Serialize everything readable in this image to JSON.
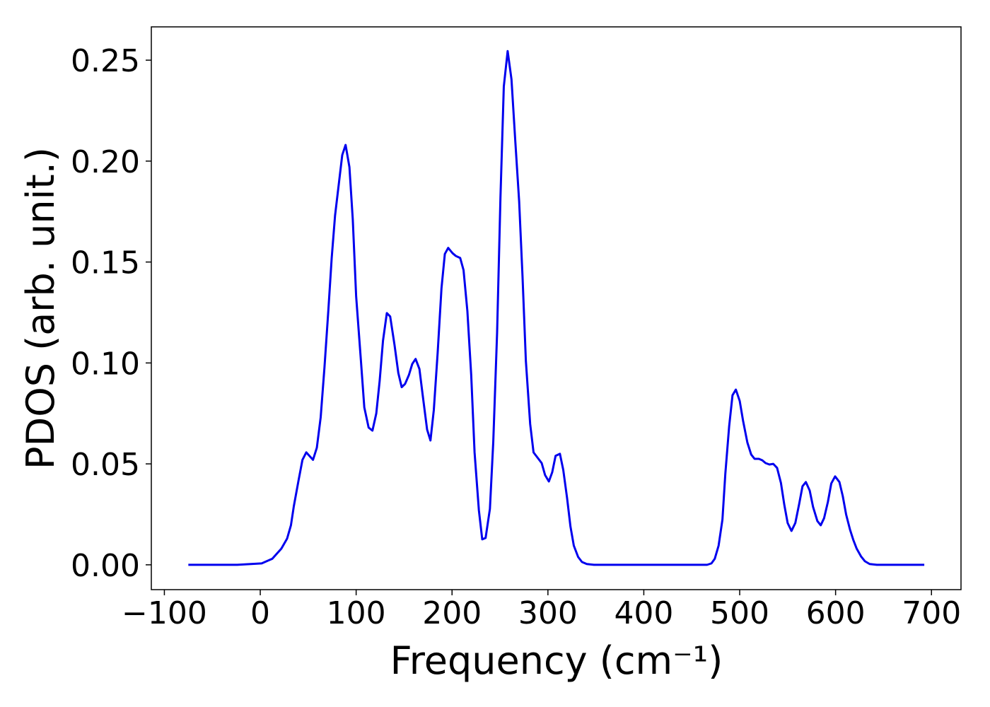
{
  "chart_data": {
    "type": "line",
    "xlabel": "Frequency (cm⁻¹)",
    "ylabel": "PDOS (arb. unit.)",
    "xlim": [
      -113.6,
      730.8
    ],
    "ylim": [
      -0.0123,
      0.2665
    ],
    "xticks": [
      {
        "value": -100,
        "label": "−100"
      },
      0,
      100,
      200,
      300,
      400,
      500,
      600,
      700
    ],
    "yticks": [
      {
        "value": 0,
        "label": "0.00"
      },
      0.05,
      {
        "value": 0.1,
        "label": "0.10"
      },
      0.15,
      {
        "value": 0.2,
        "label": "0.20"
      },
      0.25
    ],
    "grid": false,
    "series": [
      {
        "color": "#0000ee",
        "x": [
          -75,
          -24,
          1.5,
          12.5,
          22,
          28,
          32,
          35,
          40,
          44,
          48,
          55,
          59,
          63,
          67,
          71,
          74.5,
          78,
          82,
          85.5,
          89,
          93,
          96.5,
          100,
          105,
          108.5,
          113,
          117,
          121,
          124.5,
          128,
          132,
          135.5,
          140,
          144,
          147.5,
          151,
          155,
          158.5,
          162,
          166,
          169.5,
          174,
          177.5,
          181,
          185,
          189,
          192.5,
          196,
          200.5,
          204,
          208.5,
          212,
          216,
          220,
          223.5,
          228,
          231.5,
          235,
          239.5,
          243,
          247,
          250.5,
          254,
          258,
          262,
          266,
          270,
          273.5,
          277,
          281.5,
          285,
          289,
          293.5,
          297,
          301,
          304.5,
          308,
          312.5,
          316,
          320,
          323.5,
          327,
          331.5,
          335.5,
          340.5,
          348,
          466,
          470.5,
          474,
          478,
          482,
          485,
          489,
          492.5,
          496,
          500,
          503.5,
          508,
          512,
          515.5,
          520,
          523.5,
          527,
          531,
          535,
          539,
          543,
          546.5,
          550,
          554,
          558,
          562,
          565.5,
          569,
          573,
          576.5,
          581,
          584.5,
          588,
          592,
          595.5,
          599.5,
          604,
          607.5,
          611,
          615,
          618.5,
          622,
          626.5,
          630.5,
          635.5,
          643,
          692.5
        ],
        "values": [
          0,
          0,
          0.0007,
          0.003,
          0.008,
          0.013,
          0.0196,
          0.029,
          0.042,
          0.052,
          0.0557,
          0.052,
          0.058,
          0.073,
          0.098,
          0.126,
          0.152,
          0.173,
          0.189,
          0.203,
          0.208,
          0.197,
          0.171,
          0.133,
          0.101,
          0.078,
          0.068,
          0.0665,
          0.075,
          0.091,
          0.111,
          0.1247,
          0.123,
          0.109,
          0.095,
          0.088,
          0.0896,
          0.094,
          0.0995,
          0.102,
          0.097,
          0.0837,
          0.067,
          0.0616,
          0.0767,
          0.105,
          0.137,
          0.154,
          0.157,
          0.1544,
          0.153,
          0.152,
          0.146,
          0.1257,
          0.094,
          0.0557,
          0.027,
          0.0126,
          0.0133,
          0.0277,
          0.0609,
          0.115,
          0.182,
          0.237,
          0.2545,
          0.2405,
          0.2097,
          0.18,
          0.143,
          0.101,
          0.0697,
          0.0557,
          0.0532,
          0.0504,
          0.0445,
          0.0413,
          0.0459,
          0.054,
          0.055,
          0.047,
          0.033,
          0.019,
          0.0095,
          0.0039,
          0.0014,
          0.0004,
          0,
          0,
          0.0007,
          0.003,
          0.0095,
          0.0224,
          0.045,
          0.0686,
          0.084,
          0.0868,
          0.0812,
          0.0714,
          0.0606,
          0.0546,
          0.0525,
          0.0525,
          0.0518,
          0.0504,
          0.0497,
          0.05,
          0.048,
          0.0406,
          0.0298,
          0.0207,
          0.0168,
          0.0207,
          0.0301,
          0.0389,
          0.041,
          0.0368,
          0.0287,
          0.0217,
          0.0196,
          0.0231,
          0.0312,
          0.0403,
          0.0438,
          0.041,
          0.034,
          0.0249,
          0.0175,
          0.0123,
          0.008,
          0.0042,
          0.0018,
          0.0004,
          0,
          0
        ]
      }
    ]
  }
}
